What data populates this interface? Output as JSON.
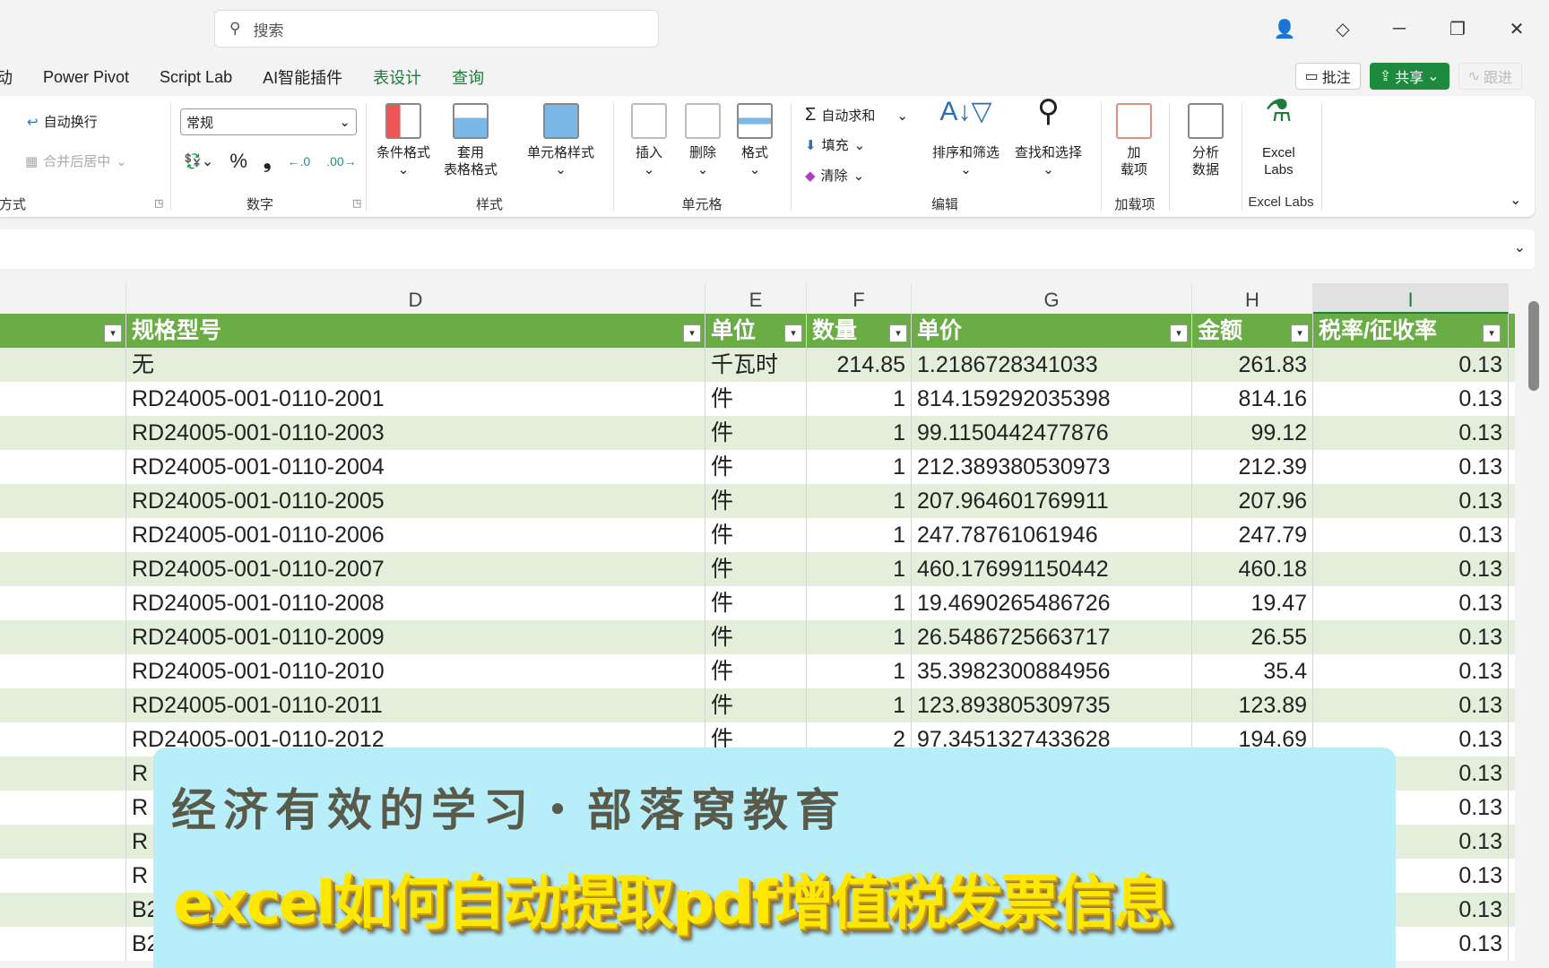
{
  "titlebar": {
    "search_placeholder": "搜索",
    "minimize": "─",
    "restore": "❐",
    "close": "✕"
  },
  "tabs": [
    "动",
    "Power Pivot",
    "Script Lab",
    "AI智能插件",
    "表设计",
    "查询"
  ],
  "actions": {
    "comment": "批注",
    "share": "共享",
    "follow": "跟进"
  },
  "ribbon": {
    "alignment": {
      "wrap": "自动换行",
      "merge": "合并后居中",
      "label": "方式"
    },
    "number": {
      "format": "常规",
      "percent": "%",
      "comma": "❟",
      "label": "数字"
    },
    "styles": {
      "conditional": "条件格式",
      "table_format_1": "套用",
      "table_format_2": "表格格式",
      "cell_styles": "单元格样式",
      "label": "样式"
    },
    "cells": {
      "insert": "插入",
      "delete": "删除",
      "format": "格式",
      "label": "单元格"
    },
    "editing": {
      "autosum": "自动求和",
      "fill": "填充",
      "clear": "清除",
      "sort": "排序和筛选",
      "find": "查找和选择",
      "label": "编辑"
    },
    "addins": {
      "btn_1": "加",
      "btn_2": "载项",
      "label": "加载项"
    },
    "analyze": {
      "btn_1": "分析",
      "btn_2": "数据"
    },
    "excellabs": {
      "btn_1": "Excel",
      "btn_2": "Labs",
      "label": "Excel Labs"
    }
  },
  "columns": [
    "D",
    "E",
    "F",
    "G",
    "H",
    "I"
  ],
  "table": {
    "headers": [
      "规格型号",
      "单位",
      "数量",
      "单价",
      "金额",
      "税率/征收率"
    ],
    "rows": [
      [
        "无",
        "千瓦时",
        "214.85",
        "1.2186728341033",
        "261.83",
        "0.13"
      ],
      [
        "RD24005-001-0110-2001",
        "件",
        "1",
        "814.159292035398",
        "814.16",
        "0.13"
      ],
      [
        "RD24005-001-0110-2003",
        "件",
        "1",
        "99.1150442477876",
        "99.12",
        "0.13"
      ],
      [
        "RD24005-001-0110-2004",
        "件",
        "1",
        "212.389380530973",
        "212.39",
        "0.13"
      ],
      [
        "RD24005-001-0110-2005",
        "件",
        "1",
        "207.964601769911",
        "207.96",
        "0.13"
      ],
      [
        "RD24005-001-0110-2006",
        "件",
        "1",
        "247.78761061946",
        "247.79",
        "0.13"
      ],
      [
        "RD24005-001-0110-2007",
        "件",
        "1",
        "460.176991150442",
        "460.18",
        "0.13"
      ],
      [
        "RD24005-001-0110-2008",
        "件",
        "1",
        "19.4690265486726",
        "19.47",
        "0.13"
      ],
      [
        "RD24005-001-0110-2009",
        "件",
        "1",
        "26.5486725663717",
        "26.55",
        "0.13"
      ],
      [
        "RD24005-001-0110-2010",
        "件",
        "1",
        "35.3982300884956",
        "35.4",
        "0.13"
      ],
      [
        "RD24005-001-0110-2011",
        "件",
        "1",
        "123.893805309735",
        "123.89",
        "0.13"
      ],
      [
        "RD24005-001-0110-2012",
        "件",
        "2",
        "97.3451327433628",
        "194.69",
        "0.13"
      ],
      [
        "R",
        "",
        "",
        "",
        "",
        "0.13"
      ],
      [
        "R",
        "",
        "",
        "",
        "",
        "0.13"
      ],
      [
        "R",
        "",
        "",
        "",
        "",
        "0.13"
      ],
      [
        "R",
        "",
        "",
        "",
        "",
        "0.13"
      ],
      [
        "B2",
        "",
        "",
        "",
        "",
        "0.13"
      ],
      [
        "B2",
        "",
        "",
        "",
        "",
        "0.13"
      ]
    ]
  },
  "overlay": {
    "subtitle": "经济有效的学习・部落窝教育",
    "title": "excel如何自动提取pdf增值税发票信息"
  },
  "colors": {
    "header_green": "#6aad45",
    "band": "#e3efda",
    "share": "#1e8a3e"
  }
}
